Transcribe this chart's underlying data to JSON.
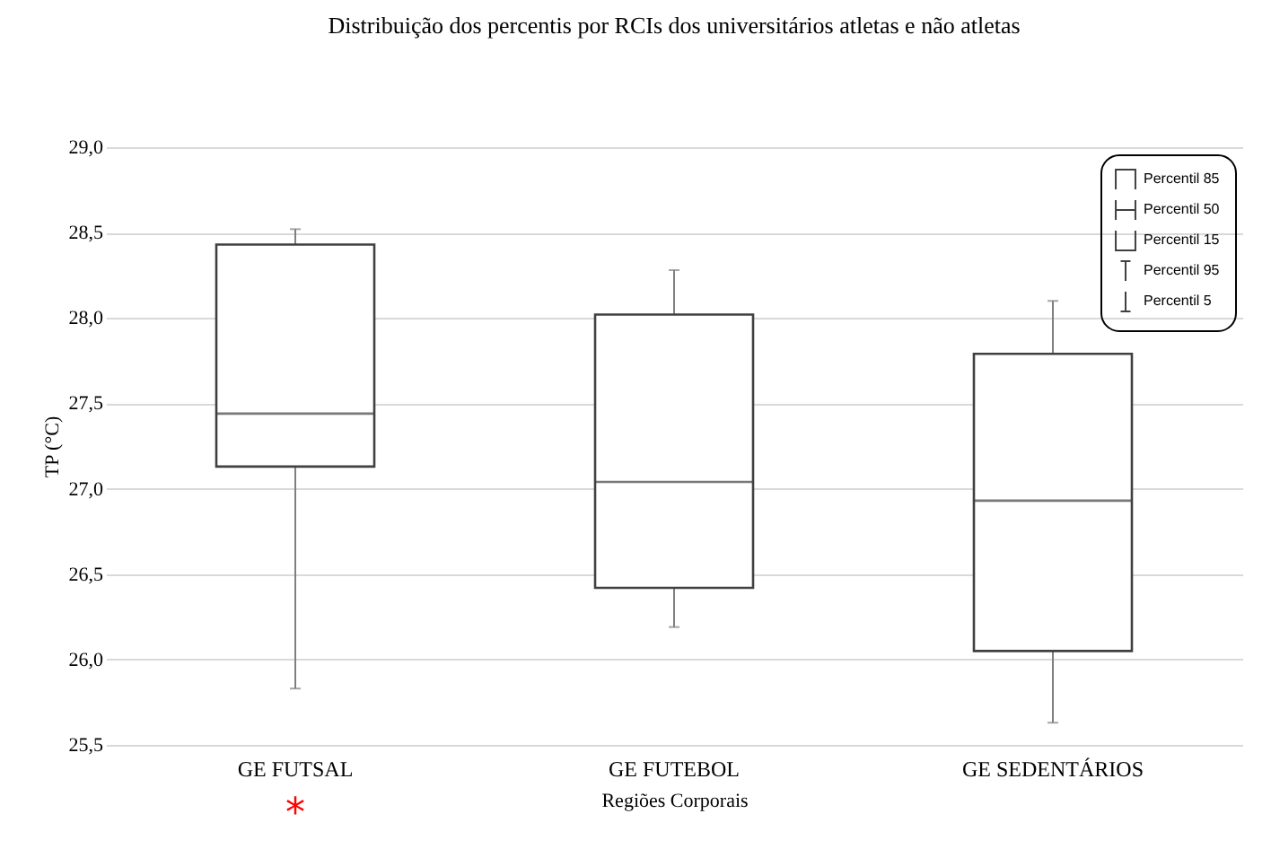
{
  "chart_data": {
    "type": "box",
    "title": "Distribuição dos percentis por RCIs dos universitários atletas e não atletas",
    "xlabel": "Regiões Corporais",
    "ylabel": "TP (°C)",
    "categories": [
      "GE FUTSAL",
      "GE FUTEBOL",
      "GE SEDENTÁRIOS"
    ],
    "boxes": [
      {
        "low": 25.83,
        "q1": 27.13,
        "median": 27.44,
        "q3": 28.43,
        "high": 28.52
      },
      {
        "low": 26.19,
        "q1": 26.42,
        "median": 27.04,
        "q3": 28.02,
        "high": 28.28
      },
      {
        "low": 25.63,
        "q1": 26.05,
        "median": 26.93,
        "q3": 27.79,
        "high": 28.1
      }
    ],
    "ylim": [
      25.5,
      29.0
    ],
    "yticks": [
      {
        "value": 25.5,
        "label": "25,5"
      },
      {
        "value": 26.0,
        "label": "26,0"
      },
      {
        "value": 26.5,
        "label": "26,5"
      },
      {
        "value": 27.0,
        "label": "27,0"
      },
      {
        "value": 27.5,
        "label": "27,5"
      },
      {
        "value": 28.0,
        "label": "28,0"
      },
      {
        "value": 28.5,
        "label": "28,5"
      },
      {
        "value": 29.0,
        "label": "29,0"
      }
    ],
    "grid": "y",
    "annotations": [
      "Percentil 85",
      "Percentil 50",
      "Percentil 15",
      "Percentil 95",
      "Percentil 5",
      "*"
    ]
  }
}
